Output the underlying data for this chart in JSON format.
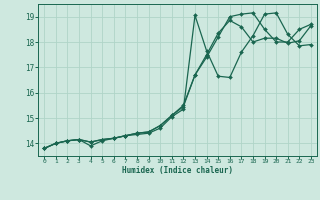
{
  "bg_color": "#cee8df",
  "grid_color": "#b0d4c8",
  "line_color": "#1a6650",
  "xlabel": "Humidex (Indice chaleur)",
  "xlim": [
    -0.5,
    23.5
  ],
  "ylim": [
    13.5,
    19.5
  ],
  "xticks": [
    0,
    1,
    2,
    3,
    4,
    5,
    6,
    7,
    8,
    9,
    10,
    11,
    12,
    13,
    14,
    15,
    16,
    17,
    18,
    19,
    20,
    21,
    22,
    23
  ],
  "yticks": [
    14,
    15,
    16,
    17,
    18,
    19
  ],
  "line1": {
    "x": [
      0,
      1,
      2,
      3,
      4,
      5,
      6,
      7,
      8,
      9,
      10,
      11,
      12,
      13,
      14,
      15,
      16,
      17,
      18,
      19,
      20,
      21,
      22,
      23
    ],
    "y": [
      13.8,
      14.0,
      14.1,
      14.15,
      14.05,
      14.15,
      14.2,
      14.3,
      14.4,
      14.45,
      14.7,
      15.1,
      15.5,
      16.7,
      17.5,
      18.35,
      18.85,
      18.6,
      18.0,
      18.15,
      18.15,
      17.95,
      18.05,
      18.65
    ]
  },
  "line2": {
    "x": [
      0,
      1,
      2,
      3,
      4,
      5,
      6,
      7,
      8,
      9,
      10,
      11,
      12,
      13,
      14,
      15,
      16,
      17,
      18,
      19,
      20,
      21,
      22,
      23
    ],
    "y": [
      13.8,
      14.0,
      14.1,
      14.15,
      14.05,
      14.15,
      14.2,
      14.3,
      14.4,
      14.45,
      14.7,
      15.1,
      15.45,
      16.7,
      17.4,
      18.2,
      19.0,
      19.1,
      19.15,
      18.5,
      18.0,
      18.0,
      18.5,
      18.7
    ]
  },
  "line3": {
    "x": [
      0,
      1,
      2,
      3,
      4,
      5,
      6,
      7,
      8,
      9,
      10,
      11,
      12,
      13,
      14,
      15,
      16,
      17,
      18,
      19,
      20,
      21,
      22,
      23
    ],
    "y": [
      13.8,
      14.0,
      14.1,
      14.15,
      13.9,
      14.1,
      14.2,
      14.3,
      14.35,
      14.4,
      14.6,
      15.05,
      15.35,
      19.05,
      17.65,
      16.65,
      16.6,
      17.6,
      18.25,
      19.1,
      19.15,
      18.3,
      17.85,
      17.9
    ]
  }
}
